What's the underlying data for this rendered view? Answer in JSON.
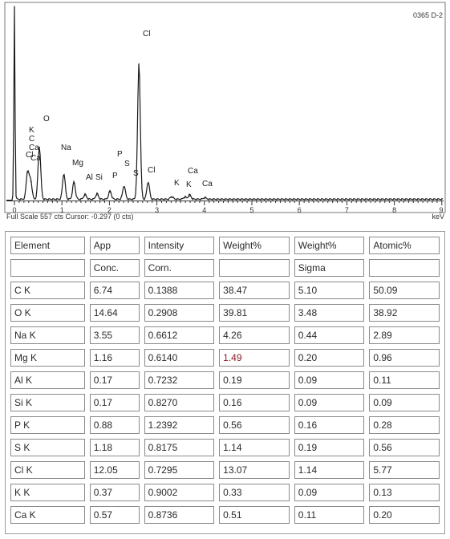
{
  "spectrum": {
    "corner_id": "0365 D-2",
    "x_ticks": [
      "0",
      "1",
      "2",
      "3",
      "4",
      "5",
      "6",
      "7",
      "8",
      "9"
    ],
    "x_unit": "keV",
    "footer": "Full Scale 557 cts Cursor: -0.297  (0 cts)",
    "colors": {
      "trace": "#1a1a1a",
      "axis": "#333333"
    },
    "chart_data": {
      "type": "line",
      "xlabel": "keV",
      "xlim": [
        -0.3,
        9.2
      ],
      "peaks": [
        {
          "x": 0.0,
          "y": 557
        },
        {
          "x": 0.277,
          "y": 80
        },
        {
          "x": 0.341,
          "y": 55
        },
        {
          "x": 0.525,
          "y": 152
        },
        {
          "x": 1.041,
          "y": 74
        },
        {
          "x": 1.254,
          "y": 50
        },
        {
          "x": 1.487,
          "y": 14
        },
        {
          "x": 1.74,
          "y": 16
        },
        {
          "x": 2.013,
          "y": 24
        },
        {
          "x": 2.308,
          "y": 39
        },
        {
          "x": 2.622,
          "y": 392
        },
        {
          "x": 2.816,
          "y": 50
        },
        {
          "x": 3.313,
          "y": 8
        },
        {
          "x": 3.59,
          "y": 7
        },
        {
          "x": 3.69,
          "y": 13
        },
        {
          "x": 4.01,
          "y": 5
        }
      ],
      "annotations": [
        {
          "text": "Cl",
          "x": 2.62
        },
        {
          "text": "K",
          "x": 0.28
        },
        {
          "text": "C",
          "x": 0.28
        },
        {
          "text": "Ca",
          "x": 0.3
        },
        {
          "text": "O",
          "x": 0.52
        },
        {
          "text": "Cl",
          "x": 0.2
        },
        {
          "text": "Ca",
          "x": 0.34
        },
        {
          "text": "Na",
          "x": 1.04
        },
        {
          "text": "Mg",
          "x": 1.25
        },
        {
          "text": "Al",
          "x": 1.49
        },
        {
          "text": "Si",
          "x": 1.74
        },
        {
          "text": "P",
          "x": 2.01
        },
        {
          "text": "P",
          "x": 2.01
        },
        {
          "text": "S",
          "x": 2.31
        },
        {
          "text": "S",
          "x": 2.46
        },
        {
          "text": "Cl",
          "x": 2.82
        },
        {
          "text": "K",
          "x": 3.31
        },
        {
          "text": "K",
          "x": 3.59
        },
        {
          "text": "Ca",
          "x": 3.69
        },
        {
          "text": "Ca",
          "x": 4.01
        }
      ]
    }
  },
  "table": {
    "header_row_1": [
      "Element",
      "App",
      "Intensity",
      "Weight%",
      "Weight%",
      "Atomic%"
    ],
    "header_row_2": [
      "",
      "Conc.",
      "Corn.",
      "",
      "Sigma",
      ""
    ],
    "rows": [
      [
        "C K",
        "6.74",
        "0.1388",
        "38.47",
        "5.10",
        "50.09"
      ],
      [
        "O K",
        "14.64",
        "0.2908",
        "39.81",
        "3.48",
        "38.92"
      ],
      [
        "Na K",
        "3.55",
        "0.6612",
        "4.26",
        "0.44",
        "2.89"
      ],
      [
        "Mg K",
        "1.16",
        "0.6140",
        "1.49",
        "0.20",
        "0.96"
      ],
      [
        "Al K",
        "0.17",
        "0.7232",
        "0.19",
        "0.09",
        "0.11"
      ],
      [
        "Si K",
        "0.17",
        "0.8270",
        "0.16",
        "0.09",
        "0.09"
      ],
      [
        "P K",
        "0.88",
        "1.2392",
        "0.56",
        "0.16",
        "0.28"
      ],
      [
        "S K",
        "1.18",
        "0.8175",
        "1.14",
        "0.19",
        "0.56"
      ],
      [
        "Cl K",
        "12.05",
        "0.7295",
        "13.07",
        "1.14",
        "5.77"
      ],
      [
        "K K",
        "0.37",
        "0.9002",
        "0.33",
        "0.09",
        "0.13"
      ],
      [
        "Ca K",
        "0.57",
        "0.8736",
        "0.51",
        "0.11",
        "0.20"
      ]
    ]
  }
}
